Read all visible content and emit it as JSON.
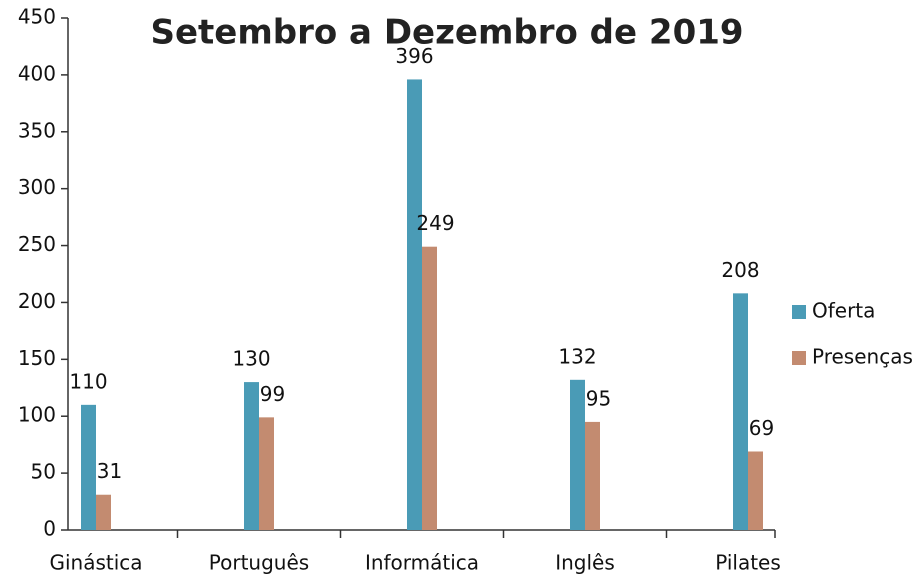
{
  "chart_data": {
    "type": "bar",
    "title": "Setembro a Dezembro de 2019",
    "categories": [
      "Ginástica",
      "Português",
      "Informática",
      "Inglês",
      "Pilates"
    ],
    "series": [
      {
        "name": "Oferta",
        "color": "#4a9bb6",
        "values": [
          110,
          130,
          396,
          132,
          208
        ]
      },
      {
        "name": "Presenças",
        "color": "#c38b70",
        "values": [
          31,
          99,
          249,
          95,
          69
        ]
      }
    ],
    "ylim": [
      0,
      450
    ],
    "yticks": [
      0,
      50,
      100,
      150,
      200,
      250,
      300,
      350,
      400,
      450
    ],
    "grid": false,
    "legend": "right"
  }
}
